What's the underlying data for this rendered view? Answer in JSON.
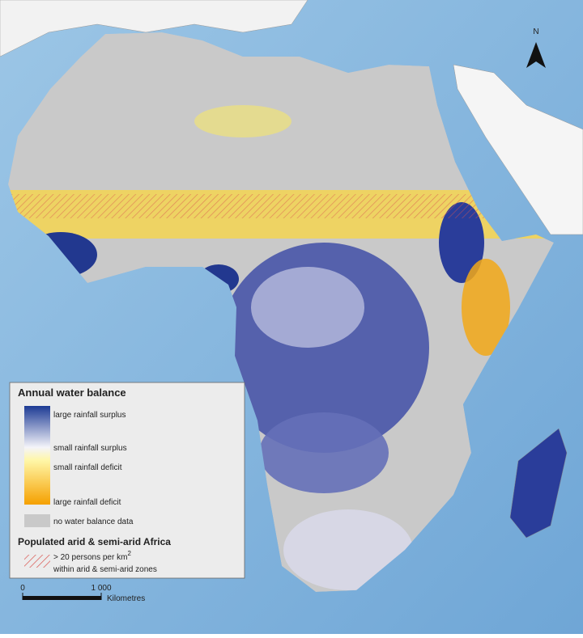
{
  "map": {
    "north_label": "N",
    "legend": {
      "title": "Annual water balance",
      "items": [
        "large rainfall surplus",
        "small rainfall surplus",
        "small rainfall deficit",
        "large rainfall deficit",
        "no water balance data"
      ],
      "section_title": "Populated arid & semi-arid Africa",
      "hatch_label": "> 20 persons per km",
      "hatch_superscript": "2",
      "hatch_label_2": "within arid & semi-arid zones"
    },
    "scale_bar": {
      "ticks": [
        0,
        {
          "value": 1000,
          "label": "1 000"
        }
      ],
      "unit": "Kilometres"
    }
  }
}
